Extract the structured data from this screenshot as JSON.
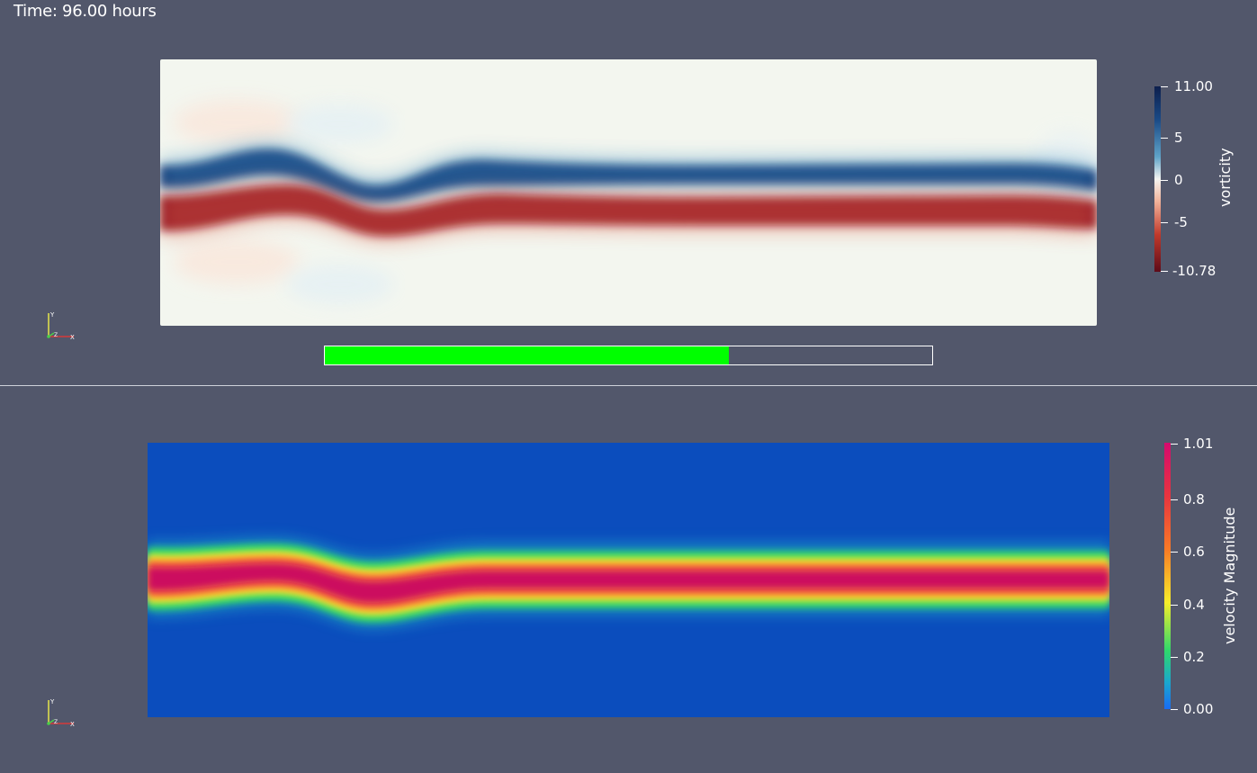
{
  "time_annotation": "Time: 96.00 hours",
  "views": {
    "top": {
      "colorbar": {
        "title": "vorticity",
        "ticks": [
          "11.00",
          "5",
          "0",
          "-5",
          "-10.78"
        ],
        "range": [
          -10.78,
          11.0
        ],
        "colors": [
          "#0d1f4d",
          "#1a4a86",
          "#5fa3c8",
          "#f4f4f0",
          "#f2b39a",
          "#c0392b",
          "#5e0a18"
        ]
      },
      "progress": {
        "fraction": 0.665,
        "color": "#00ff00"
      },
      "axes": {
        "y": "Y",
        "x": "X",
        "z": "Z"
      }
    },
    "bottom": {
      "colorbar": {
        "title": "velocity Magnitude",
        "ticks": [
          "1.01",
          "0.8",
          "0.6",
          "0.4",
          "0.2",
          "0.00"
        ],
        "range": [
          0.0,
          1.01
        ],
        "colors": [
          "#d60a6e",
          "#e8343f",
          "#f97a26",
          "#f6ee2a",
          "#2fd86b",
          "#1aa7cf",
          "#1a6cf2"
        ]
      },
      "axes": {
        "y": "Y",
        "x": "X",
        "z": "Z"
      }
    }
  },
  "colors": {
    "background": "#52576b",
    "divider": "#cfd2da"
  }
}
